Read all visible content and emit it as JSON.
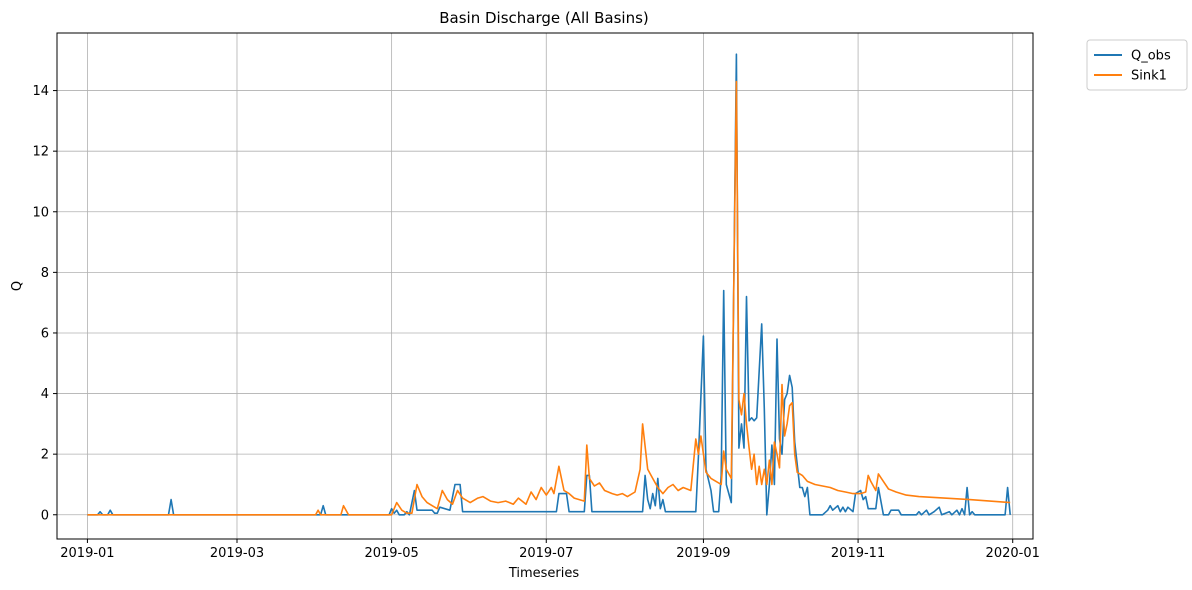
{
  "chart_data": {
    "type": "line",
    "title": "Basin Discharge (All Basins)",
    "xlabel": "Timeseries",
    "ylabel": "Q",
    "xlim": [
      "2018-12-20",
      "2020-01-09"
    ],
    "ylim": [
      -0.8,
      15.9
    ],
    "grid": true,
    "legend": "outside-top-right",
    "x_ticks": [
      "2019-01",
      "2019-03",
      "2019-05",
      "2019-07",
      "2019-09",
      "2019-11",
      "2020-01"
    ],
    "y_ticks": [
      0,
      2,
      4,
      6,
      8,
      10,
      12,
      14
    ],
    "series": [
      {
        "name": "Q_obs",
        "color": "#1f77b4",
        "points": [
          [
            "2019-01-01",
            0
          ],
          [
            "2019-01-05",
            0
          ],
          [
            "2019-01-06",
            0.1
          ],
          [
            "2019-01-07",
            0
          ],
          [
            "2019-01-09",
            0
          ],
          [
            "2019-01-10",
            0.15
          ],
          [
            "2019-01-11",
            0
          ],
          [
            "2019-02-02",
            0
          ],
          [
            "2019-02-03",
            0.5
          ],
          [
            "2019-02-04",
            0
          ],
          [
            "2019-04-03",
            0
          ],
          [
            "2019-04-04",
            0.3
          ],
          [
            "2019-04-05",
            0
          ],
          [
            "2019-04-30",
            0
          ],
          [
            "2019-05-01",
            0.2
          ],
          [
            "2019-05-02",
            0.05
          ],
          [
            "2019-05-03",
            0.15
          ],
          [
            "2019-05-04",
            0
          ],
          [
            "2019-05-06",
            0
          ],
          [
            "2019-05-07",
            0.1
          ],
          [
            "2019-05-08",
            0
          ],
          [
            "2019-05-10",
            0.8
          ],
          [
            "2019-05-11",
            0.15
          ],
          [
            "2019-05-17",
            0.15
          ],
          [
            "2019-05-18",
            0.05
          ],
          [
            "2019-05-19",
            0.05
          ],
          [
            "2019-05-20",
            0.25
          ],
          [
            "2019-05-24",
            0.15
          ],
          [
            "2019-05-26",
            1.0
          ],
          [
            "2019-05-28",
            1.0
          ],
          [
            "2019-05-29",
            0.1
          ],
          [
            "2019-07-05",
            0.1
          ],
          [
            "2019-07-06",
            0.7
          ],
          [
            "2019-07-09",
            0.7
          ],
          [
            "2019-07-10",
            0.1
          ],
          [
            "2019-07-16",
            0.1
          ],
          [
            "2019-07-17",
            1.3
          ],
          [
            "2019-07-18",
            1.3
          ],
          [
            "2019-07-19",
            0.1
          ],
          [
            "2019-08-08",
            0.1
          ],
          [
            "2019-08-09",
            1.3
          ],
          [
            "2019-08-10",
            0.5
          ],
          [
            "2019-08-11",
            0.2
          ],
          [
            "2019-08-12",
            0.7
          ],
          [
            "2019-08-13",
            0.3
          ],
          [
            "2019-08-14",
            1.2
          ],
          [
            "2019-08-15",
            0.2
          ],
          [
            "2019-08-16",
            0.5
          ],
          [
            "2019-08-17",
            0.1
          ],
          [
            "2019-08-29",
            0.1
          ],
          [
            "2019-08-30",
            1.9
          ],
          [
            "2019-09-01",
            5.9
          ],
          [
            "2019-09-02",
            1.5
          ],
          [
            "2019-09-04",
            0.8
          ],
          [
            "2019-09-05",
            0.1
          ],
          [
            "2019-09-07",
            0.1
          ],
          [
            "2019-09-08",
            1.3
          ],
          [
            "2019-09-09",
            7.4
          ],
          [
            "2019-09-10",
            1.0
          ],
          [
            "2019-09-12",
            0.4
          ],
          [
            "2019-09-14",
            15.2
          ],
          [
            "2019-09-15",
            2.2
          ],
          [
            "2019-09-16",
            3.0
          ],
          [
            "2019-09-17",
            2.2
          ],
          [
            "2019-09-18",
            7.2
          ],
          [
            "2019-09-19",
            3.1
          ],
          [
            "2019-09-20",
            3.2
          ],
          [
            "2019-09-21",
            3.1
          ],
          [
            "2019-09-22",
            3.2
          ],
          [
            "2019-09-24",
            6.3
          ],
          [
            "2019-09-25",
            3.5
          ],
          [
            "2019-09-26",
            0
          ],
          [
            "2019-09-27",
            1.0
          ],
          [
            "2019-09-28",
            2.3
          ],
          [
            "2019-09-29",
            1.0
          ],
          [
            "2019-09-30",
            5.8
          ],
          [
            "2019-10-01",
            2.5
          ],
          [
            "2019-10-02",
            2.0
          ],
          [
            "2019-10-03",
            3.8
          ],
          [
            "2019-10-04",
            4.0
          ],
          [
            "2019-10-05",
            4.6
          ],
          [
            "2019-10-06",
            4.2
          ],
          [
            "2019-10-07",
            2.4
          ],
          [
            "2019-10-09",
            0.9
          ],
          [
            "2019-10-10",
            0.9
          ],
          [
            "2019-10-11",
            0.6
          ],
          [
            "2019-10-12",
            0.9
          ],
          [
            "2019-10-13",
            0
          ],
          [
            "2019-10-18",
            0
          ],
          [
            "2019-10-20",
            0.15
          ],
          [
            "2019-10-21",
            0.3
          ],
          [
            "2019-10-22",
            0.15
          ],
          [
            "2019-10-24",
            0.3
          ],
          [
            "2019-10-25",
            0.1
          ],
          [
            "2019-10-26",
            0.25
          ],
          [
            "2019-10-27",
            0.1
          ],
          [
            "2019-10-28",
            0.25
          ],
          [
            "2019-10-30",
            0.1
          ],
          [
            "2019-10-31",
            0.7
          ],
          [
            "2019-11-02",
            0.8
          ],
          [
            "2019-11-03",
            0.5
          ],
          [
            "2019-11-04",
            0.6
          ],
          [
            "2019-11-05",
            0.2
          ],
          [
            "2019-11-08",
            0.2
          ],
          [
            "2019-11-09",
            0.9
          ],
          [
            "2019-11-11",
            0
          ],
          [
            "2019-11-13",
            0
          ],
          [
            "2019-11-14",
            0.15
          ],
          [
            "2019-11-17",
            0.15
          ],
          [
            "2019-11-18",
            0
          ],
          [
            "2019-11-24",
            0
          ],
          [
            "2019-11-25",
            0.1
          ],
          [
            "2019-11-26",
            0
          ],
          [
            "2019-11-28",
            0.15
          ],
          [
            "2019-11-29",
            0
          ],
          [
            "2019-12-01",
            0.1
          ],
          [
            "2019-12-03",
            0.25
          ],
          [
            "2019-12-04",
            0
          ],
          [
            "2019-12-07",
            0.1
          ],
          [
            "2019-12-08",
            0
          ],
          [
            "2019-12-10",
            0.15
          ],
          [
            "2019-12-11",
            0
          ],
          [
            "2019-12-12",
            0.2
          ],
          [
            "2019-12-13",
            0
          ],
          [
            "2019-12-14",
            0.9
          ],
          [
            "2019-12-15",
            0
          ],
          [
            "2019-12-16",
            0.1
          ],
          [
            "2019-12-17",
            0
          ],
          [
            "2019-12-29",
            0
          ],
          [
            "2019-12-30",
            0.9
          ],
          [
            "2019-12-31",
            0
          ]
        ]
      },
      {
        "name": "Sink1",
        "color": "#ff7f0e",
        "points": [
          [
            "2019-01-01",
            0
          ],
          [
            "2019-04-01",
            0
          ],
          [
            "2019-04-02",
            0.15
          ],
          [
            "2019-04-03",
            0
          ],
          [
            "2019-04-11",
            0
          ],
          [
            "2019-04-12",
            0.3
          ],
          [
            "2019-04-14",
            0
          ],
          [
            "2019-05-01",
            0
          ],
          [
            "2019-05-03",
            0.4
          ],
          [
            "2019-05-05",
            0.15
          ],
          [
            "2019-05-07",
            0.05
          ],
          [
            "2019-05-09",
            0.05
          ],
          [
            "2019-05-11",
            1.0
          ],
          [
            "2019-05-13",
            0.6
          ],
          [
            "2019-05-15",
            0.4
          ],
          [
            "2019-05-17",
            0.3
          ],
          [
            "2019-05-19",
            0.2
          ],
          [
            "2019-05-21",
            0.8
          ],
          [
            "2019-05-23",
            0.5
          ],
          [
            "2019-05-25",
            0.35
          ],
          [
            "2019-05-27",
            0.8
          ],
          [
            "2019-05-29",
            0.55
          ],
          [
            "2019-06-01",
            0.4
          ],
          [
            "2019-06-04",
            0.55
          ],
          [
            "2019-06-06",
            0.6
          ],
          [
            "2019-06-09",
            0.45
          ],
          [
            "2019-06-12",
            0.4
          ],
          [
            "2019-06-15",
            0.45
          ],
          [
            "2019-06-18",
            0.35
          ],
          [
            "2019-06-20",
            0.55
          ],
          [
            "2019-06-23",
            0.35
          ],
          [
            "2019-06-25",
            0.75
          ],
          [
            "2019-06-27",
            0.5
          ],
          [
            "2019-06-29",
            0.9
          ],
          [
            "2019-07-01",
            0.65
          ],
          [
            "2019-07-03",
            0.9
          ],
          [
            "2019-07-04",
            0.7
          ],
          [
            "2019-07-06",
            1.6
          ],
          [
            "2019-07-08",
            0.8
          ],
          [
            "2019-07-10",
            0.7
          ],
          [
            "2019-07-12",
            0.55
          ],
          [
            "2019-07-16",
            0.45
          ],
          [
            "2019-07-17",
            2.3
          ],
          [
            "2019-07-18",
            1.2
          ],
          [
            "2019-07-20",
            0.95
          ],
          [
            "2019-07-22",
            1.05
          ],
          [
            "2019-07-24",
            0.8
          ],
          [
            "2019-07-27",
            0.7
          ],
          [
            "2019-07-29",
            0.65
          ],
          [
            "2019-07-31",
            0.7
          ],
          [
            "2019-08-02",
            0.6
          ],
          [
            "2019-08-05",
            0.75
          ],
          [
            "2019-08-07",
            1.5
          ],
          [
            "2019-08-08",
            3.0
          ],
          [
            "2019-08-10",
            1.5
          ],
          [
            "2019-08-12",
            1.2
          ],
          [
            "2019-08-14",
            0.9
          ],
          [
            "2019-08-16",
            0.7
          ],
          [
            "2019-08-18",
            0.9
          ],
          [
            "2019-08-20",
            1.0
          ],
          [
            "2019-08-22",
            0.8
          ],
          [
            "2019-08-24",
            0.9
          ],
          [
            "2019-08-27",
            0.8
          ],
          [
            "2019-08-29",
            2.5
          ],
          [
            "2019-08-30",
            2.0
          ],
          [
            "2019-08-31",
            2.6
          ],
          [
            "2019-09-02",
            1.4
          ],
          [
            "2019-09-04",
            1.2
          ],
          [
            "2019-09-06",
            1.1
          ],
          [
            "2019-09-08",
            1.0
          ],
          [
            "2019-09-09",
            2.1
          ],
          [
            "2019-09-10",
            1.5
          ],
          [
            "2019-09-12",
            1.2
          ],
          [
            "2019-09-14",
            14.3
          ],
          [
            "2019-09-15",
            3.8
          ],
          [
            "2019-09-16",
            3.3
          ],
          [
            "2019-09-17",
            4.0
          ],
          [
            "2019-09-18",
            3.0
          ],
          [
            "2019-09-19",
            2.2
          ],
          [
            "2019-09-20",
            1.5
          ],
          [
            "2019-09-21",
            2.0
          ],
          [
            "2019-09-22",
            1.0
          ],
          [
            "2019-09-23",
            1.6
          ],
          [
            "2019-09-24",
            1.0
          ],
          [
            "2019-09-25",
            1.5
          ],
          [
            "2019-09-26",
            1.0
          ],
          [
            "2019-09-27",
            1.8
          ],
          [
            "2019-09-28",
            1.0
          ],
          [
            "2019-09-29",
            2.4
          ],
          [
            "2019-09-30",
            2.0
          ],
          [
            "2019-10-01",
            1.55
          ],
          [
            "2019-10-02",
            4.3
          ],
          [
            "2019-10-03",
            2.6
          ],
          [
            "2019-10-04",
            3.0
          ],
          [
            "2019-10-05",
            3.6
          ],
          [
            "2019-10-06",
            3.7
          ],
          [
            "2019-10-07",
            2.0
          ],
          [
            "2019-10-08",
            1.4
          ],
          [
            "2019-10-10",
            1.3
          ],
          [
            "2019-10-12",
            1.1
          ],
          [
            "2019-10-15",
            1.0
          ],
          [
            "2019-10-18",
            0.95
          ],
          [
            "2019-10-21",
            0.9
          ],
          [
            "2019-10-24",
            0.8
          ],
          [
            "2019-10-27",
            0.75
          ],
          [
            "2019-10-30",
            0.7
          ],
          [
            "2019-11-02",
            0.7
          ],
          [
            "2019-11-04",
            0.75
          ],
          [
            "2019-11-05",
            1.3
          ],
          [
            "2019-11-06",
            1.1
          ],
          [
            "2019-11-08",
            0.8
          ],
          [
            "2019-11-09",
            1.35
          ],
          [
            "2019-11-11",
            1.1
          ],
          [
            "2019-11-13",
            0.85
          ],
          [
            "2019-11-16",
            0.75
          ],
          [
            "2019-11-20",
            0.65
          ],
          [
            "2019-11-25",
            0.6
          ],
          [
            "2019-12-05",
            0.55
          ],
          [
            "2019-12-15",
            0.5
          ],
          [
            "2019-12-31",
            0.4
          ]
        ]
      }
    ]
  }
}
